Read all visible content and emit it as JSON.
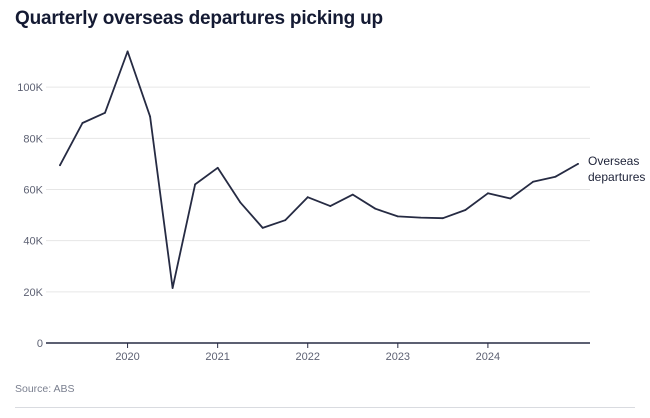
{
  "header": {
    "title": "Quarterly overseas departures picking up"
  },
  "footer": {
    "source": "Source: ABS"
  },
  "colors": {
    "line": "#262b43",
    "gridline": "#e6e6e6",
    "axis": "#262b43",
    "tick_text": "#5d6173"
  },
  "chart_data": {
    "type": "line",
    "title": "Quarterly overseas departures picking up",
    "xlabel": "",
    "ylabel": "",
    "ylim": [
      0,
      120000
    ],
    "y_ticks": [
      0,
      20000,
      40000,
      60000,
      80000,
      100000
    ],
    "y_tick_labels": [
      "0",
      "20K",
      "40K",
      "60K",
      "80K",
      "100K"
    ],
    "x_ticks": [
      2020,
      2021,
      2022,
      2023,
      2024
    ],
    "x_tick_labels": [
      "2020",
      "2021",
      "2022",
      "2023",
      "2024"
    ],
    "grid": true,
    "legend": "direct-label-right",
    "series": [
      {
        "name": "Overseas departures",
        "label_lines": [
          "Overseas",
          "departures"
        ],
        "x": [
          2019.25,
          2019.5,
          2019.75,
          2020.0,
          2020.25,
          2020.5,
          2020.75,
          2021.0,
          2021.25,
          2021.5,
          2021.75,
          2022.0,
          2022.25,
          2022.5,
          2022.75,
          2023.0,
          2023.25,
          2023.5,
          2023.75,
          2024.0,
          2024.25,
          2024.5,
          2024.75,
          2025.0
        ],
        "values": [
          69500,
          86000,
          90000,
          114000,
          88500,
          21500,
          62000,
          68500,
          55000,
          45000,
          48000,
          57000,
          53500,
          58000,
          52500,
          49500,
          49000,
          48800,
          52000,
          58500,
          56500,
          63000,
          65000,
          70000
        ]
      }
    ]
  }
}
